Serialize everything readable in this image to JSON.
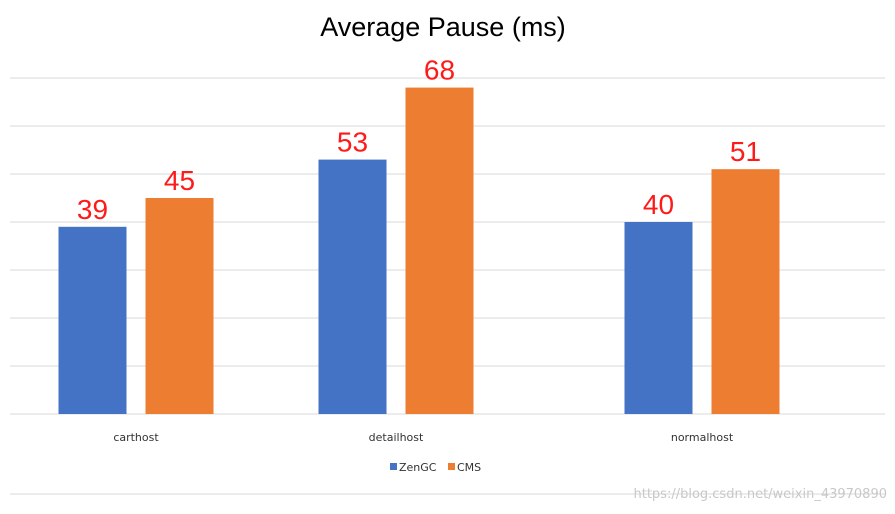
{
  "chart_data": {
    "type": "bar",
    "title": "Average Pause (ms)",
    "categories": [
      "carthost",
      "detailhost",
      "normalhost"
    ],
    "series": [
      {
        "name": "ZenGC",
        "values": [
          39,
          53,
          40
        ]
      },
      {
        "name": "CMS",
        "values": [
          45,
          68,
          51
        ]
      }
    ],
    "ylim": [
      0,
      70
    ],
    "grid": true,
    "legend": "bottom"
  },
  "colors": {
    "ZenGC": "#4472c4",
    "CMS": "#ed7d31",
    "data_label": "#ff1a1a",
    "grid": "#d9d9d9"
  },
  "watermark": "https://blog.csdn.net/weixin_43970890"
}
